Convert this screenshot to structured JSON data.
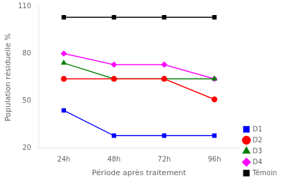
{
  "chart_data": {
    "type": "line",
    "categories": [
      "24h",
      "48h",
      "72h",
      "96h"
    ],
    "series": [
      {
        "name": "D1",
        "color": "blue",
        "marker": "square",
        "values": [
          44,
          28,
          28,
          28
        ]
      },
      {
        "name": "D2",
        "color": "red",
        "marker": "circle",
        "values": [
          64,
          64,
          64,
          51
        ]
      },
      {
        "name": "D3",
        "color": "green",
        "marker": "triangle",
        "values": [
          74,
          64,
          64,
          64
        ]
      },
      {
        "name": "D4",
        "color": "magenta",
        "marker": "diamond",
        "values": [
          80,
          73,
          73,
          64
        ]
      },
      {
        "name": "Témoin",
        "color": "black",
        "marker": "square",
        "values": [
          103,
          103,
          103,
          103
        ]
      }
    ],
    "xlabel": "Période après traitement",
    "ylabel": "Population résiduelle %",
    "ylim": [
      20,
      110
    ],
    "yticks": [
      20,
      50,
      80,
      110
    ],
    "grid": false,
    "legend": "right"
  }
}
